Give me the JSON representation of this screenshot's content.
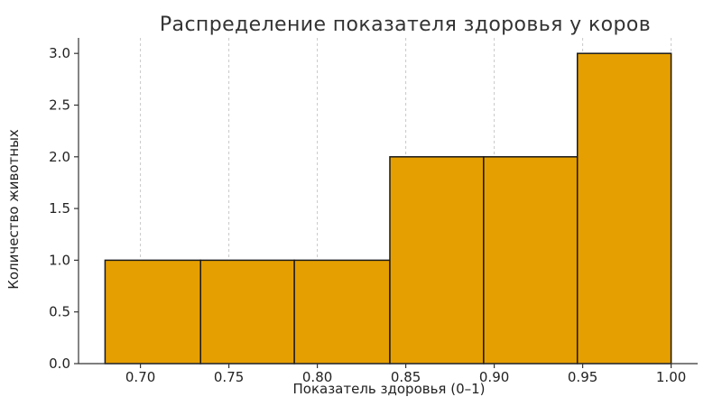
{
  "chart_data": {
    "type": "bar",
    "title": "Распределение показателя здоровья у коров",
    "xlabel": "Показатель здоровья (0–1)",
    "ylabel": "Количество животных",
    "bins": [
      {
        "x0": 0.68,
        "x1": 0.734,
        "value": 1
      },
      {
        "x0": 0.734,
        "x1": 0.787,
        "value": 1
      },
      {
        "x0": 0.787,
        "x1": 0.841,
        "value": 1
      },
      {
        "x0": 0.841,
        "x1": 0.894,
        "value": 2
      },
      {
        "x0": 0.894,
        "x1": 0.947,
        "value": 2
      },
      {
        "x0": 0.947,
        "x1": 1.0,
        "value": 3
      }
    ],
    "xticks": [
      "0.70",
      "0.75",
      "0.80",
      "0.85",
      "0.90",
      "0.95",
      "1.00"
    ],
    "yticks": [
      "0.0",
      "0.5",
      "1.0",
      "1.5",
      "2.0",
      "2.5",
      "3.0"
    ],
    "xlim": [
      0.665,
      1.015
    ],
    "ylim": [
      0,
      3.15
    ],
    "grid": "vertical dashed",
    "bar_color": "#e69f00",
    "edge_color": "#1a1a1a"
  }
}
